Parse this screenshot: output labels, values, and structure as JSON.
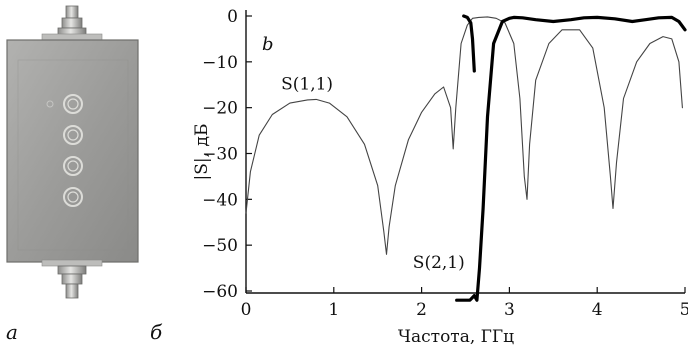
{
  "figure": {
    "photo_label": "a",
    "chart_label": "б",
    "inner_label": "b"
  },
  "chart_data": {
    "type": "line",
    "xlabel": "Частота, ГГц",
    "ylabel": "|S|, дБ",
    "xlim": [
      0,
      5
    ],
    "ylim": [
      -62,
      1
    ],
    "xticks": [
      "0",
      "1",
      "2",
      "3",
      "4",
      "5"
    ],
    "yticks": [
      "0",
      "−10",
      "−20",
      "−30",
      "−40",
      "−50",
      "−60"
    ],
    "series": [
      {
        "name": "S(1,1)",
        "stroke": "#444444",
        "x": [
          0,
          0.05,
          0.15,
          0.3,
          0.5,
          0.7,
          0.8,
          0.95,
          1.15,
          1.35,
          1.5,
          1.57,
          1.6,
          1.63,
          1.7,
          1.85,
          2.0,
          2.15,
          2.25,
          2.33,
          2.36,
          2.39,
          2.45,
          2.52,
          2.58,
          2.65,
          2.75,
          2.85,
          2.95,
          3.05,
          3.12,
          3.17,
          3.2,
          3.23,
          3.3,
          3.45,
          3.6,
          3.8,
          3.95,
          4.08,
          4.15,
          4.18,
          4.22,
          4.3,
          4.45,
          4.6,
          4.75,
          4.85,
          4.93,
          4.97
        ],
        "y": [
          -43,
          -34,
          -26,
          -21.5,
          -19,
          -18.3,
          -18.2,
          -19,
          -22,
          -28,
          -37,
          -47,
          -52,
          -46,
          -37,
          -27,
          -21,
          -17,
          -15.5,
          -20,
          -29,
          -20,
          -6,
          -2,
          -0.5,
          -0.3,
          -0.2,
          -0.5,
          -1.5,
          -6,
          -18,
          -35,
          -40,
          -28,
          -14,
          -6,
          -3,
          -3,
          -7,
          -20,
          -35,
          -42,
          -32,
          -18,
          -10,
          -6,
          -4.5,
          -5,
          -10,
          -20
        ]
      },
      {
        "name": "S(2,1)",
        "stroke": "#000000",
        "x": [
          2.4,
          2.5,
          2.55,
          2.6,
          2.63,
          2.66,
          2.7,
          2.75,
          2.82,
          2.92,
          3.0,
          3.05,
          3.15,
          3.3,
          3.5,
          3.7,
          3.85,
          4.0,
          4.2,
          4.4,
          4.55,
          4.7,
          4.85,
          4.93,
          5.0
        ],
        "y": [
          -62,
          -62,
          -62,
          -61,
          -62,
          -55,
          -42,
          -22,
          -6,
          -1.2,
          -0.5,
          -0.3,
          -0.4,
          -0.8,
          -1.2,
          -0.8,
          -0.4,
          -0.3,
          -0.6,
          -1.2,
          -0.8,
          -0.4,
          -0.3,
          -1.2,
          -3
        ]
      },
      {
        "name": "",
        "stroke": "#000000",
        "x": [
          2.48,
          2.52,
          2.56,
          2.58,
          2.6
        ],
        "y": [
          0,
          -0.3,
          -1.5,
          -5,
          -12
        ]
      }
    ],
    "annotations": [
      {
        "text": "S(1,1)",
        "x": 0.4,
        "y": -16
      },
      {
        "text": "S(2,1)",
        "x": 1.9,
        "y": -55
      }
    ]
  },
  "colors": {
    "housing": "#9a9a98",
    "housing_edge": "#6e6e6c",
    "connector": "#c8c8c6",
    "resonator_ring": "#d9d9d6"
  }
}
